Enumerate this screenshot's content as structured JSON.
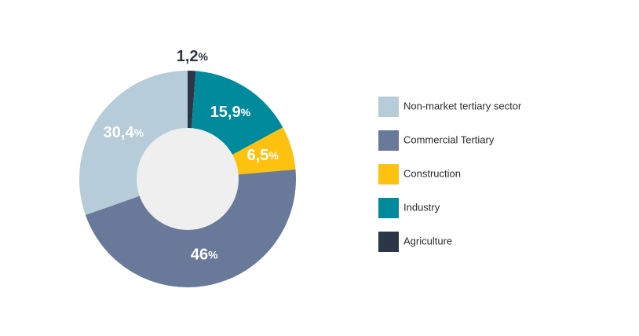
{
  "chart_data": {
    "type": "donut",
    "categories": [
      "Non-market tertiary sector",
      "Commercial Tertiary",
      "Construction",
      "Industry",
      "Agriculture"
    ],
    "values": [
      30.4,
      46,
      6.5,
      15.9,
      1.2
    ],
    "value_labels": [
      "30,4",
      "46",
      "6,5",
      "15,9",
      "1,2"
    ],
    "unit": "%",
    "colors": [
      "#b6ccd8",
      "#69799a",
      "#fdc210",
      "#018a9c",
      "#2c3646"
    ],
    "legend": "right"
  }
}
